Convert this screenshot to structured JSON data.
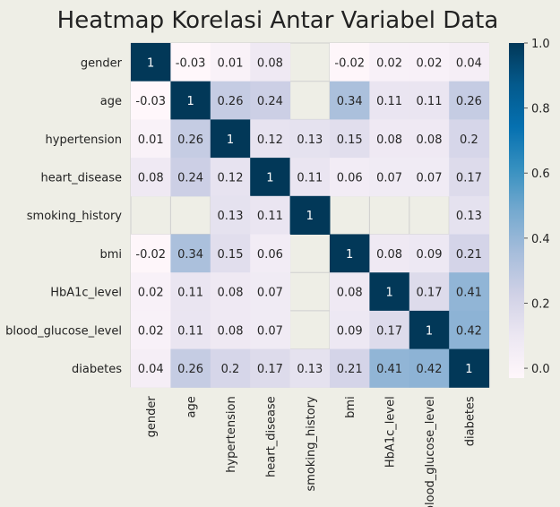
{
  "chart_data": {
    "type": "heatmap",
    "title": "Heatmap Korelasi Antar Variabel Data",
    "xlabel": "",
    "ylabel": "",
    "variables": [
      "gender",
      "age",
      "hypertension",
      "heart_disease",
      "smoking_history",
      "bmi",
      "HbA1c_level",
      "blood_glucose_level",
      "diabetes"
    ],
    "matrix": [
      [
        1,
        -0.03,
        0.01,
        0.08,
        null,
        -0.02,
        0.02,
        0.02,
        0.04
      ],
      [
        -0.03,
        1,
        0.26,
        0.24,
        null,
        0.34,
        0.11,
        0.11,
        0.26
      ],
      [
        0.01,
        0.26,
        1,
        0.12,
        0.13,
        0.15,
        0.08,
        0.08,
        0.2
      ],
      [
        0.08,
        0.24,
        0.12,
        1,
        0.11,
        0.06,
        0.07,
        0.07,
        0.17
      ],
      [
        null,
        null,
        0.13,
        0.11,
        1,
        null,
        null,
        null,
        0.13
      ],
      [
        -0.02,
        0.34,
        0.15,
        0.06,
        null,
        1,
        0.08,
        0.09,
        0.21
      ],
      [
        0.02,
        0.11,
        0.08,
        0.07,
        null,
        0.08,
        1,
        0.17,
        0.41
      ],
      [
        0.02,
        0.11,
        0.08,
        0.07,
        null,
        0.09,
        0.17,
        1,
        0.42
      ],
      [
        0.04,
        0.26,
        0.2,
        0.17,
        0.13,
        0.21,
        0.41,
        0.42,
        1
      ]
    ],
    "colorbar": {
      "range": [
        -0.03,
        1.0
      ],
      "ticks": [
        0.0,
        0.2,
        0.4,
        0.6,
        0.8,
        1.0
      ],
      "tick_labels": [
        "0.0",
        "0.2",
        "0.4",
        "0.6",
        "0.8",
        "1.0"
      ]
    },
    "colormap": [
      "#fff7fb",
      "#ece7f2",
      "#d0d1e6",
      "#a6bddb",
      "#74a9cf",
      "#3690c0",
      "#0570b0",
      "#045a8d",
      "#023858"
    ],
    "missing_color": "#ffffff",
    "gridlines": "light grey on empty cells"
  }
}
